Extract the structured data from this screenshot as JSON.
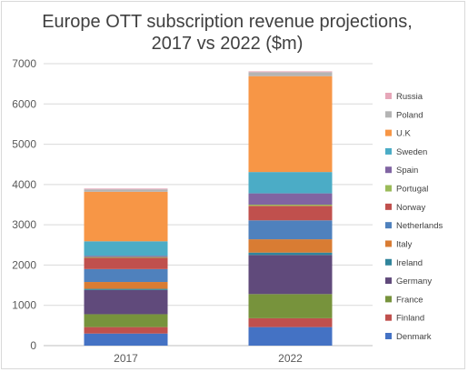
{
  "chart_data": {
    "type": "bar",
    "stacked": true,
    "title_line1": "Europe OTT subscription revenue projections,",
    "title_line2": "2017 vs 2022 ($m)",
    "xlabel": "",
    "ylabel": "",
    "ylim": [
      0,
      7000
    ],
    "yticks": [
      0,
      1000,
      2000,
      3000,
      4000,
      5000,
      6000,
      7000
    ],
    "grid": true,
    "legend_position": "right",
    "categories": [
      "2017",
      "2022"
    ],
    "series": [
      {
        "name": "Denmark",
        "color": "#4472c4",
        "values": [
          300,
          460
        ]
      },
      {
        "name": "Finland",
        "color": "#c0504d",
        "values": [
          160,
          220
        ]
      },
      {
        "name": "France",
        "color": "#77933c",
        "values": [
          320,
          600
        ]
      },
      {
        "name": "Germany",
        "color": "#604a7b",
        "values": [
          600,
          970
        ]
      },
      {
        "name": "Ireland",
        "color": "#31859c",
        "values": [
          30,
          60
        ]
      },
      {
        "name": "Italy",
        "color": "#d97c33",
        "values": [
          170,
          330
        ]
      },
      {
        "name": "Netherlands",
        "color": "#4f81bd",
        "values": [
          320,
          470
        ]
      },
      {
        "name": "Norway",
        "color": "#c0504d",
        "values": [
          280,
          360
        ]
      },
      {
        "name": "Portugal",
        "color": "#9bbb59",
        "values": [
          20,
          30
        ]
      },
      {
        "name": "Spain",
        "color": "#8064a2",
        "values": [
          30,
          280
        ]
      },
      {
        "name": "Sweden",
        "color": "#4bacc6",
        "values": [
          360,
          530
        ]
      },
      {
        "name": "U.K",
        "color": "#f79646",
        "values": [
          1230,
          2380
        ]
      },
      {
        "name": "Poland",
        "color": "#b4b4b4",
        "values": [
          60,
          100
        ]
      },
      {
        "name": "Russia",
        "color": "#e6a7b9",
        "values": [
          20,
          20
        ]
      }
    ]
  }
}
